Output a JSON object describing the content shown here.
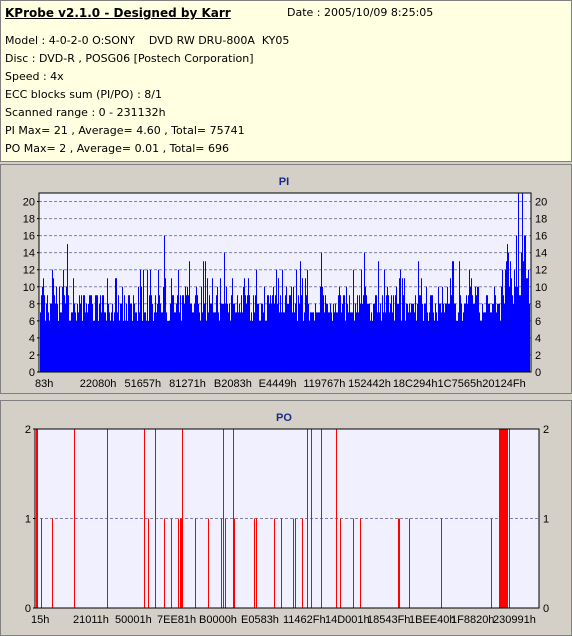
{
  "info": {
    "title": "KProbe v2.1.0 - Designed by Karr",
    "date": "Date : 2005/10/09 8:25:05",
    "lines": [
      "Model : 4-0-2-0 O:SONY    DVD RW DRU-800A  KY05",
      "Disc : DVD-R , POSG06 [Postech Corporation]",
      "Speed : 4x",
      "ECC blocks sum (PI/PO) : 8/1",
      "Scanned range : 0 - 231132h",
      "PI Max= 21 , Average= 4.60 , Total= 75741",
      "PO Max= 2 , Average= 0.01 , Total= 696"
    ]
  },
  "chart_data": [
    {
      "type": "bar",
      "title": "PI",
      "series_color": "#0000ff",
      "ylim": [
        0,
        21
      ],
      "yticks": [
        0,
        2,
        4,
        6,
        8,
        10,
        12,
        14,
        16,
        18,
        20
      ],
      "xticks": [
        "83h",
        "22080h",
        "51657h",
        "81271h",
        "B2083h",
        "E4449h",
        "119767h",
        "152442h",
        "18C294h",
        "1C7565h",
        "20124Fh"
      ],
      "grid": true,
      "max": 21,
      "average": 4.6
    },
    {
      "type": "bar",
      "title": "PO",
      "series_color": "#ff0000",
      "ylim": [
        0,
        2
      ],
      "yticks": [
        0,
        1,
        2
      ],
      "xticks": [
        "15h",
        "21011h",
        "50001h",
        "7EE81h",
        "B0000h",
        "E0583h",
        "11462Fh",
        "14D001h",
        "18543Fh",
        "1BEE40h",
        "1F8820h",
        "230991h"
      ],
      "grid": true,
      "max": 2,
      "average": 0.01
    }
  ]
}
